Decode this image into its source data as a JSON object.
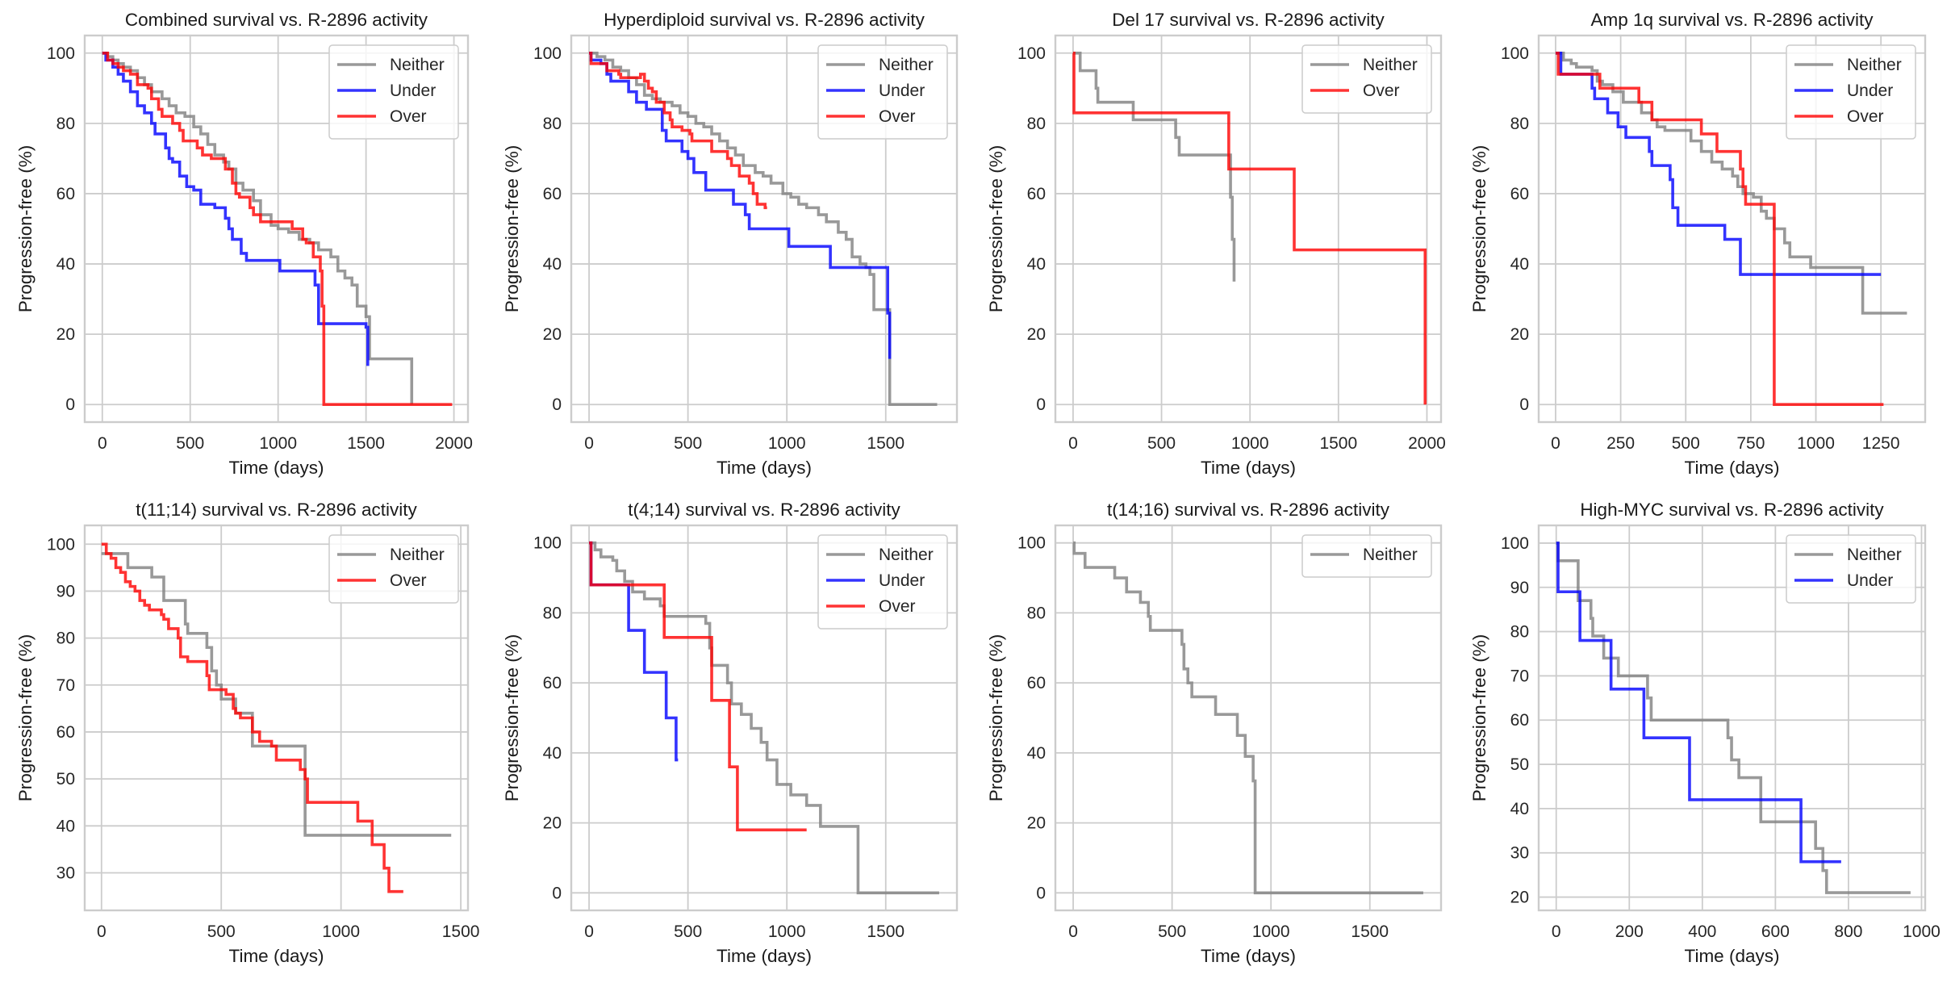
{
  "figure": {
    "colors": {
      "Neither": "#808080",
      "Under": "#0000ff",
      "Over": "#ff0000"
    }
  },
  "chart_data": [
    {
      "type": "line",
      "title": "Combined survival vs. R-2896 activity",
      "xlabel": "Time (days)",
      "ylabel": "Progression-free (%)",
      "xlim": [
        -100,
        2080
      ],
      "ylim": [
        -5,
        105
      ],
      "xticks": [
        0,
        500,
        1000,
        1500,
        2000
      ],
      "yticks": [
        0,
        20,
        40,
        60,
        80,
        100
      ],
      "grid": true,
      "legend": "top-right",
      "series": [
        {
          "name": "Neither",
          "x": [
            0,
            30,
            60,
            90,
            120,
            160,
            200,
            240,
            280,
            340,
            380,
            420,
            470,
            520,
            560,
            600,
            640,
            690,
            720,
            760,
            800,
            860,
            900,
            960,
            1000,
            1060,
            1120,
            1180,
            1230,
            1300,
            1340,
            1380,
            1420,
            1450,
            1500,
            1520,
            1750,
            1760
          ],
          "y": [
            100,
            99,
            98,
            97,
            96,
            95,
            93,
            91,
            89,
            87,
            85,
            83,
            82,
            79,
            77,
            74,
            71,
            69,
            67,
            63,
            61,
            58,
            54,
            51,
            50,
            49,
            47,
            46,
            44,
            42,
            38,
            36,
            34,
            28,
            25,
            13,
            13,
            0
          ]
        },
        {
          "name": "Under",
          "x": [
            0,
            20,
            60,
            90,
            120,
            160,
            200,
            240,
            280,
            300,
            360,
            380,
            400,
            440,
            480,
            520,
            560,
            640,
            700,
            720,
            740,
            790,
            820,
            1000,
            1010,
            1210,
            1230,
            1240,
            1500,
            1510
          ],
          "y": [
            100,
            98,
            96,
            94,
            92,
            89,
            85,
            83,
            80,
            77,
            73,
            70,
            69,
            65,
            62,
            61,
            57,
            56,
            53,
            50,
            47,
            43,
            41,
            41,
            38,
            34,
            23,
            23,
            22,
            11
          ]
        },
        {
          "name": "Over",
          "x": [
            0,
            30,
            60,
            90,
            120,
            160,
            200,
            260,
            280,
            320,
            340,
            400,
            440,
            460,
            540,
            570,
            620,
            700,
            740,
            760,
            780,
            840,
            860,
            900,
            1000,
            1060,
            1080,
            1140,
            1160,
            1200,
            1240,
            1250,
            1260,
            1990
          ],
          "y": [
            100,
            98,
            97,
            96,
            95,
            94,
            91,
            90,
            87,
            84,
            82,
            80,
            78,
            75,
            73,
            71,
            70,
            67,
            63,
            60,
            59,
            56,
            54,
            52,
            52,
            52,
            50,
            47,
            46,
            42,
            38,
            28,
            0,
            0
          ]
        }
      ]
    },
    {
      "type": "line",
      "title": "Hyperdiploid survival vs. R-2896 activity",
      "xlabel": "Time (days)",
      "ylabel": "Progression-free (%)",
      "xlim": [
        -90,
        1860
      ],
      "ylim": [
        -5,
        105
      ],
      "xticks": [
        0,
        500,
        1000,
        1500
      ],
      "yticks": [
        0,
        20,
        40,
        60,
        80,
        100
      ],
      "grid": true,
      "legend": "top-right",
      "series": [
        {
          "name": "Neither",
          "x": [
            0,
            40,
            80,
            120,
            160,
            200,
            240,
            280,
            320,
            360,
            420,
            460,
            500,
            540,
            580,
            620,
            660,
            700,
            740,
            780,
            840,
            880,
            920,
            980,
            1020,
            1060,
            1100,
            1160,
            1200,
            1260,
            1300,
            1330,
            1370,
            1400,
            1420,
            1440,
            1510,
            1520,
            1760
          ],
          "y": [
            100,
            99,
            98,
            96,
            95,
            93,
            91,
            88,
            87,
            86,
            85,
            83,
            82,
            80,
            79,
            77,
            75,
            73,
            71,
            68,
            66,
            65,
            63,
            60,
            59,
            57,
            56,
            54,
            52,
            49,
            47,
            42,
            40,
            39,
            37,
            27,
            27,
            0,
            0
          ]
        },
        {
          "name": "Under",
          "x": [
            0,
            10,
            60,
            90,
            110,
            200,
            240,
            290,
            370,
            390,
            470,
            500,
            530,
            590,
            730,
            790,
            810,
            1010,
            1220,
            1510,
            1520
          ],
          "y": [
            100,
            98,
            97,
            94,
            92,
            89,
            86,
            84,
            78,
            75,
            72,
            70,
            66,
            61,
            57,
            54,
            50,
            45,
            39,
            26,
            13
          ]
        },
        {
          "name": "Over",
          "x": [
            0,
            10,
            90,
            150,
            160,
            260,
            280,
            300,
            320,
            340,
            380,
            410,
            420,
            470,
            510,
            520,
            590,
            620,
            700,
            720,
            760,
            810,
            830,
            850,
            890,
            900
          ],
          "y": [
            100,
            97,
            95,
            94,
            93,
            94,
            92,
            90,
            89,
            86,
            83,
            81,
            79,
            78,
            77,
            75,
            75,
            72,
            70,
            68,
            65,
            63,
            60,
            57,
            56,
            56
          ]
        }
      ]
    },
    {
      "type": "line",
      "title": "Del 17 survival vs. R-2896 activity",
      "xlabel": "Time (days)",
      "ylabel": "Progression-free (%)",
      "xlim": [
        -100,
        2080
      ],
      "ylim": [
        -5,
        105
      ],
      "xticks": [
        0,
        500,
        1000,
        1500,
        2000
      ],
      "yticks": [
        0,
        20,
        40,
        60,
        80,
        100
      ],
      "grid": true,
      "legend": "top-right",
      "series": [
        {
          "name": "Neither",
          "x": [
            0,
            40,
            130,
            140,
            340,
            580,
            600,
            890,
            900,
            910
          ],
          "y": [
            100,
            95,
            90,
            86,
            81,
            76,
            71,
            59,
            47,
            35
          ]
        },
        {
          "name": "Over",
          "x": [
            0,
            5,
            680,
            880,
            1250,
            1990
          ],
          "y": [
            100,
            83,
            83,
            67,
            44,
            0
          ]
        }
      ]
    },
    {
      "type": "line",
      "title": "Amp 1q survival vs. R-2896 activity",
      "xlabel": "Time (days)",
      "ylabel": "Progression-free (%)",
      "xlim": [
        -65,
        1420
      ],
      "ylim": [
        -5,
        105
      ],
      "xticks": [
        0,
        250,
        500,
        750,
        1000,
        1250
      ],
      "yticks": [
        0,
        20,
        40,
        60,
        80,
        100
      ],
      "grid": true,
      "legend": "top-right",
      "series": [
        {
          "name": "Neither",
          "x": [
            0,
            30,
            60,
            80,
            140,
            160,
            180,
            220,
            260,
            290,
            330,
            370,
            390,
            420,
            520,
            560,
            600,
            640,
            680,
            700,
            720,
            760,
            790,
            810,
            840,
            880,
            900,
            980,
            1180,
            1350
          ],
          "y": [
            100,
            98,
            97,
            96,
            95,
            92,
            91,
            89,
            86,
            86,
            83,
            81,
            79,
            78,
            75,
            72,
            69,
            67,
            65,
            62,
            60,
            59,
            55,
            53,
            50,
            46,
            42,
            39,
            26,
            26
          ]
        },
        {
          "name": "Under",
          "x": [
            0,
            20,
            140,
            150,
            200,
            240,
            270,
            360,
            370,
            440,
            450,
            470,
            650,
            710,
            1250
          ],
          "y": [
            100,
            94,
            90,
            87,
            83,
            79,
            76,
            72,
            68,
            64,
            56,
            51,
            47,
            37,
            37
          ]
        },
        {
          "name": "Over",
          "x": [
            0,
            10,
            170,
            320,
            370,
            560,
            620,
            710,
            720,
            730,
            830,
            840,
            1260
          ],
          "y": [
            100,
            94,
            90,
            86,
            81,
            77,
            72,
            67,
            62,
            57,
            57,
            0,
            0
          ]
        }
      ]
    },
    {
      "type": "line",
      "title": "t(11;14) survival vs. R-2896 activity",
      "xlabel": "Time (days)",
      "ylabel": "Progression-free (%)",
      "xlim": [
        -70,
        1530
      ],
      "ylim": [
        22,
        104
      ],
      "xticks": [
        0,
        500,
        1000,
        1500
      ],
      "yticks": [
        30,
        40,
        50,
        60,
        70,
        80,
        90,
        100
      ],
      "grid": true,
      "legend": "top-right",
      "series": [
        {
          "name": "Neither",
          "x": [
            0,
            110,
            210,
            260,
            350,
            360,
            440,
            460,
            480,
            500,
            560,
            630,
            850,
            1460
          ],
          "y": [
            98,
            95,
            93,
            88,
            83,
            81,
            78,
            73,
            70,
            67,
            64,
            57,
            38,
            38
          ]
        },
        {
          "name": "Over",
          "x": [
            0,
            20,
            40,
            60,
            80,
            100,
            120,
            140,
            160,
            180,
            200,
            250,
            260,
            280,
            320,
            330,
            360,
            440,
            450,
            520,
            550,
            560,
            580,
            630,
            660,
            710,
            730,
            830,
            850,
            860,
            1070,
            1130,
            1180,
            1200,
            1260
          ],
          "y": [
            100,
            98,
            97,
            95,
            94,
            92,
            91,
            90,
            88,
            87,
            86,
            85,
            84,
            82,
            80,
            76,
            75,
            72,
            69,
            68,
            65,
            64,
            63,
            60,
            58,
            57,
            54,
            52,
            50,
            45,
            41,
            36,
            31,
            26,
            26
          ]
        }
      ]
    },
    {
      "type": "line",
      "title": "t(4;14) survival vs. R-2896 activity",
      "xlabel": "Time (days)",
      "ylabel": "Progression-free (%)",
      "xlim": [
        -90,
        1860
      ],
      "ylim": [
        -5,
        105
      ],
      "xticks": [
        0,
        500,
        1000,
        1500
      ],
      "yticks": [
        0,
        20,
        40,
        60,
        80,
        100
      ],
      "grid": true,
      "legend": "top-right",
      "series": [
        {
          "name": "Neither",
          "x": [
            0,
            30,
            60,
            120,
            140,
            180,
            220,
            280,
            360,
            380,
            590,
            610,
            620,
            700,
            720,
            770,
            820,
            870,
            900,
            950,
            1020,
            1100,
            1170,
            1360,
            1770
          ],
          "y": [
            100,
            98,
            96,
            95,
            92,
            89,
            86,
            84,
            82,
            79,
            77,
            70,
            65,
            60,
            54,
            51,
            47,
            43,
            38,
            31,
            28,
            25,
            19,
            0,
            0
          ]
        },
        {
          "name": "Under",
          "x": [
            0,
            10,
            200,
            280,
            390,
            440,
            450
          ],
          "y": [
            100,
            88,
            75,
            63,
            50,
            38,
            38
          ]
        },
        {
          "name": "Over",
          "x": [
            0,
            10,
            380,
            620,
            710,
            750,
            1100
          ],
          "y": [
            100,
            88,
            73,
            55,
            36,
            18,
            18
          ]
        }
      ]
    },
    {
      "type": "line",
      "title": "t(14;16) survival vs. R-2896 activity",
      "xlabel": "Time (days)",
      "ylabel": "Progression-free (%)",
      "xlim": [
        -90,
        1860
      ],
      "ylim": [
        -5,
        105
      ],
      "xticks": [
        0,
        500,
        1000,
        1500
      ],
      "yticks": [
        0,
        20,
        40,
        60,
        80,
        100
      ],
      "grid": true,
      "legend": "top-right",
      "series": [
        {
          "name": "Neither",
          "x": [
            0,
            5,
            60,
            210,
            270,
            340,
            380,
            390,
            550,
            560,
            580,
            600,
            720,
            830,
            870,
            910,
            920,
            1770
          ],
          "y": [
            100,
            97,
            93,
            90,
            86,
            83,
            79,
            75,
            71,
            64,
            60,
            56,
            51,
            45,
            39,
            32,
            0,
            0
          ]
        }
      ]
    },
    {
      "type": "line",
      "title": "High-MYC survival vs. R-2896 activity",
      "xlabel": "Time (days)",
      "ylabel": "Progression-free (%)",
      "xlim": [
        -48,
        1010
      ],
      "ylim": [
        17,
        104
      ],
      "xticks": [
        0,
        200,
        400,
        600,
        800,
        1000
      ],
      "yticks": [
        20,
        30,
        40,
        50,
        60,
        70,
        80,
        90,
        100
      ],
      "grid": true,
      "legend": "top-right",
      "series": [
        {
          "name": "Neither",
          "x": [
            0,
            5,
            60,
            95,
            100,
            130,
            170,
            250,
            260,
            470,
            480,
            500,
            560,
            710,
            730,
            740,
            970
          ],
          "y": [
            100,
            96,
            87,
            83,
            79,
            74,
            70,
            65,
            60,
            56,
            51,
            47,
            37,
            31,
            26,
            21,
            21
          ]
        },
        {
          "name": "Under",
          "x": [
            0,
            5,
            65,
            150,
            240,
            365,
            670,
            780
          ],
          "y": [
            100,
            89,
            78,
            67,
            56,
            42,
            28,
            28
          ]
        }
      ]
    }
  ]
}
